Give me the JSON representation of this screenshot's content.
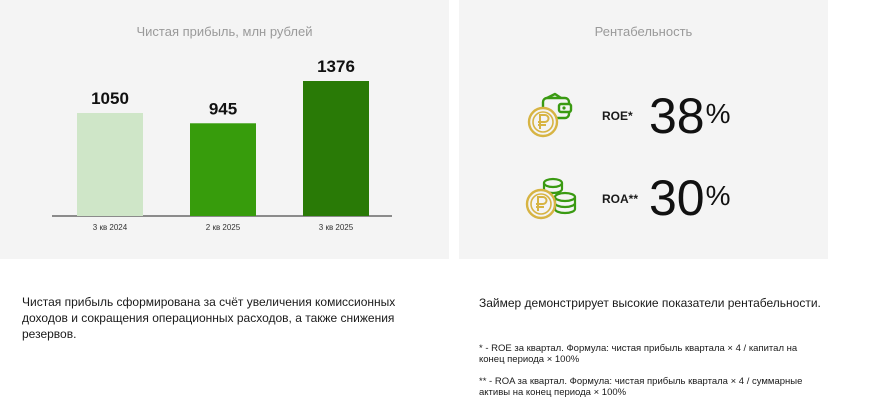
{
  "left_panel": {
    "chart_data": {
      "type": "bar",
      "title": "Чистая прибыль, млн рублей",
      "categories": [
        "3 кв 2024",
        "2 кв 2025",
        "3 кв 2025"
      ],
      "values": [
        1050,
        945,
        1376
      ],
      "colors": [
        "#cfe6c8",
        "#379c0c",
        "#297a06"
      ],
      "xlabel": "",
      "ylabel": "",
      "ylim": [
        0,
        1376
      ],
      "grid": false,
      "legend": "none"
    },
    "note": "Чистая прибыль сформирована за счёт увеличения комиссионных доходов и сокращения операционных расходов, а также снижения резервов."
  },
  "right_panel": {
    "title": "Рентабельность",
    "metrics": [
      {
        "label": "ROE*",
        "value": "38",
        "unit": "%",
        "icon": "wallet-ruble-coin-icon"
      },
      {
        "label": "ROA**",
        "value": "30",
        "unit": "%",
        "icon": "coin-stacks-ruble-icon"
      }
    ],
    "lead": "Займер демонстрирует высокие показатели рентабельности.",
    "footnotes": [
      "* - ROE за квартал. Формула: чистая прибыль квартала × 4 / капитал на конец периода × 100%",
      "** - ROA за квартал. Формула: чистая прибыль квартала × 4 / суммарные активы на конец периода × 100%"
    ]
  },
  "colors": {
    "panel_bg": "#f4f4f4",
    "icon_gold": "#d7b443",
    "icon_green": "#3a9a12"
  }
}
